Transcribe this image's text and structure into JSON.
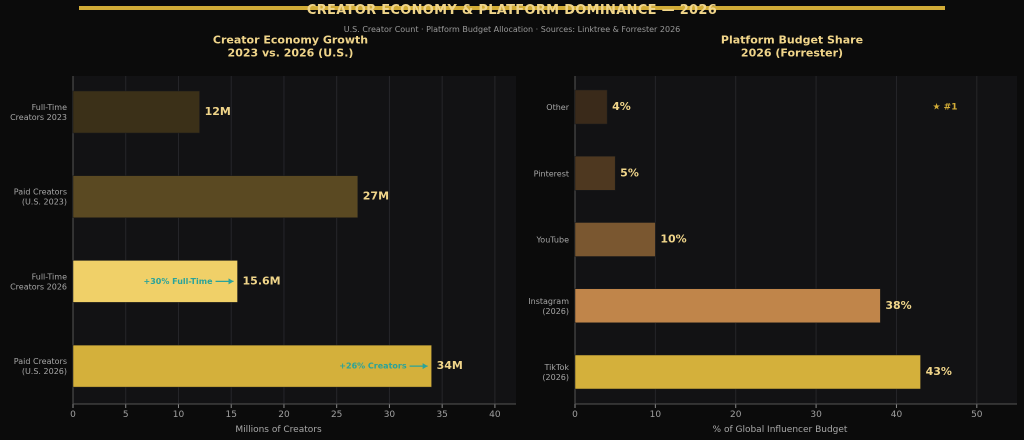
{
  "header": {
    "title": "CREATOR ECONOMY & PLATFORM DOMINANCE — 2026",
    "subtitle": "U.S. Creator Count  ·  Platform Budget Allocation  ·  Sources: Linktree & Forrester 2026"
  },
  "colors": {
    "accent": "#d2ac37",
    "background": "#0b0b0b",
    "panel": "#121214",
    "annotation": "#2aa39a",
    "label": "#f0d58a"
  },
  "chart_data": [
    {
      "type": "bar",
      "orientation": "horizontal",
      "title": "Creator Economy Growth\n2023 vs. 2026 (U.S.)",
      "xlabel": "Millions of Creators",
      "ylabel": "",
      "xlim": [
        0,
        42
      ],
      "xticks": [
        0,
        5,
        10,
        15,
        20,
        25,
        30,
        35,
        40
      ],
      "grid": true,
      "categories": [
        "Full-Time\nCreators 2023",
        "Paid Creators\n(U.S. 2023)",
        "Full-Time\nCreators 2026",
        "Paid Creators\n(U.S. 2026)"
      ],
      "values": [
        12,
        27,
        15.6,
        34
      ],
      "value_labels": [
        "12M",
        "27M",
        "15.6M",
        "34M"
      ],
      "colors": [
        "#3b3018",
        "#5a4922",
        "#f0d068",
        "#d4b03b"
      ],
      "annotations": [
        {
          "category_index": 2,
          "text": "+30% Full-Time"
        },
        {
          "category_index": 3,
          "text": "+26% Creators"
        }
      ]
    },
    {
      "type": "bar",
      "orientation": "horizontal",
      "title": "Platform Budget Share\n2026 (Forrester)",
      "xlabel": "% of Global Influencer Budget",
      "ylabel": "",
      "xlim": [
        0,
        55
      ],
      "xticks": [
        0,
        10,
        20,
        30,
        40,
        50
      ],
      "grid": true,
      "categories": [
        "Other",
        "Pinterest",
        "YouTube",
        "Instagram\n(2026)",
        "TikTok\n(2026)"
      ],
      "values": [
        4,
        5,
        10,
        38,
        43
      ],
      "value_labels": [
        "4%",
        "5%",
        "10%",
        "38%",
        "43%"
      ],
      "colors": [
        "#3a2a1a",
        "#4e3820",
        "#7a5730",
        "#c0854a",
        "#d4b03b"
      ],
      "badge": "★ #1"
    }
  ]
}
